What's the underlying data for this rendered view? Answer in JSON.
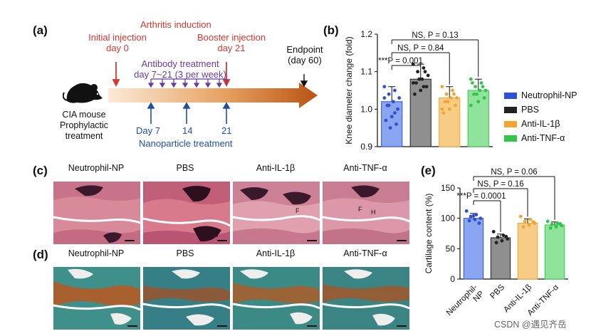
{
  "panels": {
    "a": "(a)",
    "b": "(b)",
    "c": "(c)",
    "d": "(d)",
    "e": "(e)"
  },
  "timeline": {
    "arthritis_induction": "Arthritis induction",
    "initial_injection_line1": "Initial injection",
    "initial_injection_line2": "day 0",
    "booster_injection_line1": "Booster injection",
    "booster_injection_line2": "day 21",
    "endpoint_line1": "Endpoint",
    "endpoint_line2": "(day 60)",
    "antibody_line1": "Antibody treatment",
    "antibody_line2": "day 7~21 (3 per week)",
    "mouse_line1": "CIA mouse",
    "mouse_line2": "Prophylactic",
    "mouse_line3": "treatment",
    "day7": "Day 7",
    "day14": "14",
    "day21": "21",
    "nanoparticle": "Nanoparticle treatment"
  },
  "colors": {
    "neutrophil": "#2f4fd6",
    "pbs": "#222222",
    "il1b": "#f3a533",
    "tnfa": "#34c44a"
  },
  "legend": [
    "Neutrophil-NP",
    "PBS",
    "Anti-IL-1β",
    "Anti-TNF-α"
  ],
  "panel_c_titles": [
    "Neutrophil-NP",
    "PBS",
    "Anti-IL-1β",
    "Anti-TNF-α"
  ],
  "panel_d_titles": [
    "Neutrophil-NP",
    "PBS",
    "Anti-IL-1β",
    "Anti-TNF-α"
  ],
  "annotations_c": {
    "F": "F",
    "H": "H"
  },
  "chart_data": [
    {
      "id": "b",
      "type": "bar",
      "ylabel": "Knee diameter change (fold)",
      "ylim": [
        0.9,
        1.2
      ],
      "yticks": [
        "0.9",
        "1.0",
        "1.1",
        "1.2"
      ],
      "categories": [
        "Neutrophil-NP",
        "PBS",
        "Anti-IL-1β",
        "Anti-TNF-α"
      ],
      "values": [
        1.02,
        1.08,
        1.03,
        1.05
      ],
      "errors": [
        0.04,
        0.04,
        0.03,
        0.03
      ],
      "points": [
        [
          1.06,
          1.05,
          1.04,
          1.03,
          1.02,
          1.01,
          1.0,
          0.98,
          0.97,
          0.96,
          0.95,
          1.03,
          0.99,
          1.01
        ],
        [
          1.12,
          1.11,
          1.1,
          1.09,
          1.08,
          1.07,
          1.06,
          1.05,
          1.04,
          1.1,
          1.08,
          1.07,
          1.06
        ],
        [
          1.06,
          1.05,
          1.04,
          1.03,
          1.03,
          1.02,
          1.01,
          1.0,
          0.99,
          1.04,
          1.02,
          1.0
        ],
        [
          1.08,
          1.07,
          1.06,
          1.05,
          1.05,
          1.04,
          1.03,
          1.02,
          1.07,
          1.06,
          1.04,
          1.01
        ]
      ],
      "sig": [
        "NS, P = 0.13",
        "NS, P = 0.84",
        "***P = 0.001"
      ],
      "bar_labels_shown": false
    },
    {
      "id": "e",
      "type": "bar",
      "ylabel": "Cartilage content (%)",
      "ylim": [
        0,
        150
      ],
      "yticks": [
        "0",
        "50",
        "100",
        "150"
      ],
      "categories": [
        "Neutrophil-NP",
        "PBS",
        "Anti-IL-1β",
        "Anti-TNF-α"
      ],
      "xtick_labels": [
        "Neutrophil-\nNP",
        "PBS",
        "Anti-IL-1β",
        "Anti-TNF-α"
      ],
      "values": [
        100,
        68,
        92,
        89
      ],
      "errors": [
        8,
        6,
        7,
        5
      ],
      "points": [
        [
          112,
          106,
          103,
          100,
          98,
          96,
          92,
          104
        ],
        [
          78,
          72,
          69,
          66,
          63,
          60,
          70
        ],
        [
          103,
          98,
          95,
          92,
          89,
          86,
          94
        ],
        [
          95,
          92,
          90,
          88,
          86,
          84,
          91
        ]
      ],
      "sig": [
        "NS, P = 0.06",
        "NS, P = 0.16",
        "***P = 0.0001"
      ]
    }
  ],
  "watermark": "CSDN @遇见齐岳"
}
